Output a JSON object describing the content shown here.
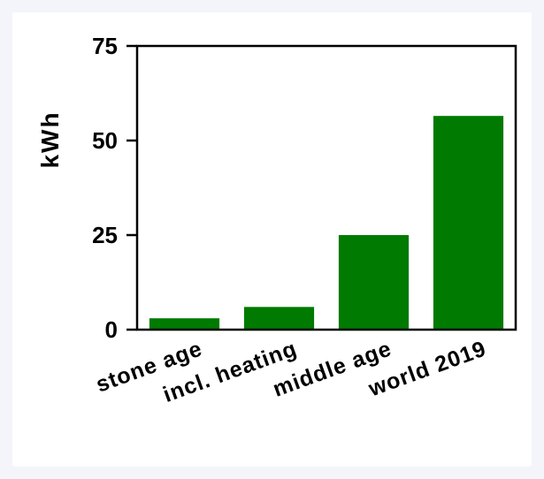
{
  "chart_data": {
    "type": "bar",
    "categories": [
      "stone age",
      "incl. heating",
      "middle age",
      "world 2019"
    ],
    "values": [
      3,
      6,
      25,
      56.5
    ],
    "title": "",
    "xlabel": "",
    "ylabel": "kWh",
    "ylim": [
      0,
      75
    ],
    "yticks": [
      "0",
      "25",
      "50",
      "75"
    ],
    "grid": false,
    "bar_color": "#007a00",
    "axis_color": "#000000",
    "background": "#ffffff"
  }
}
